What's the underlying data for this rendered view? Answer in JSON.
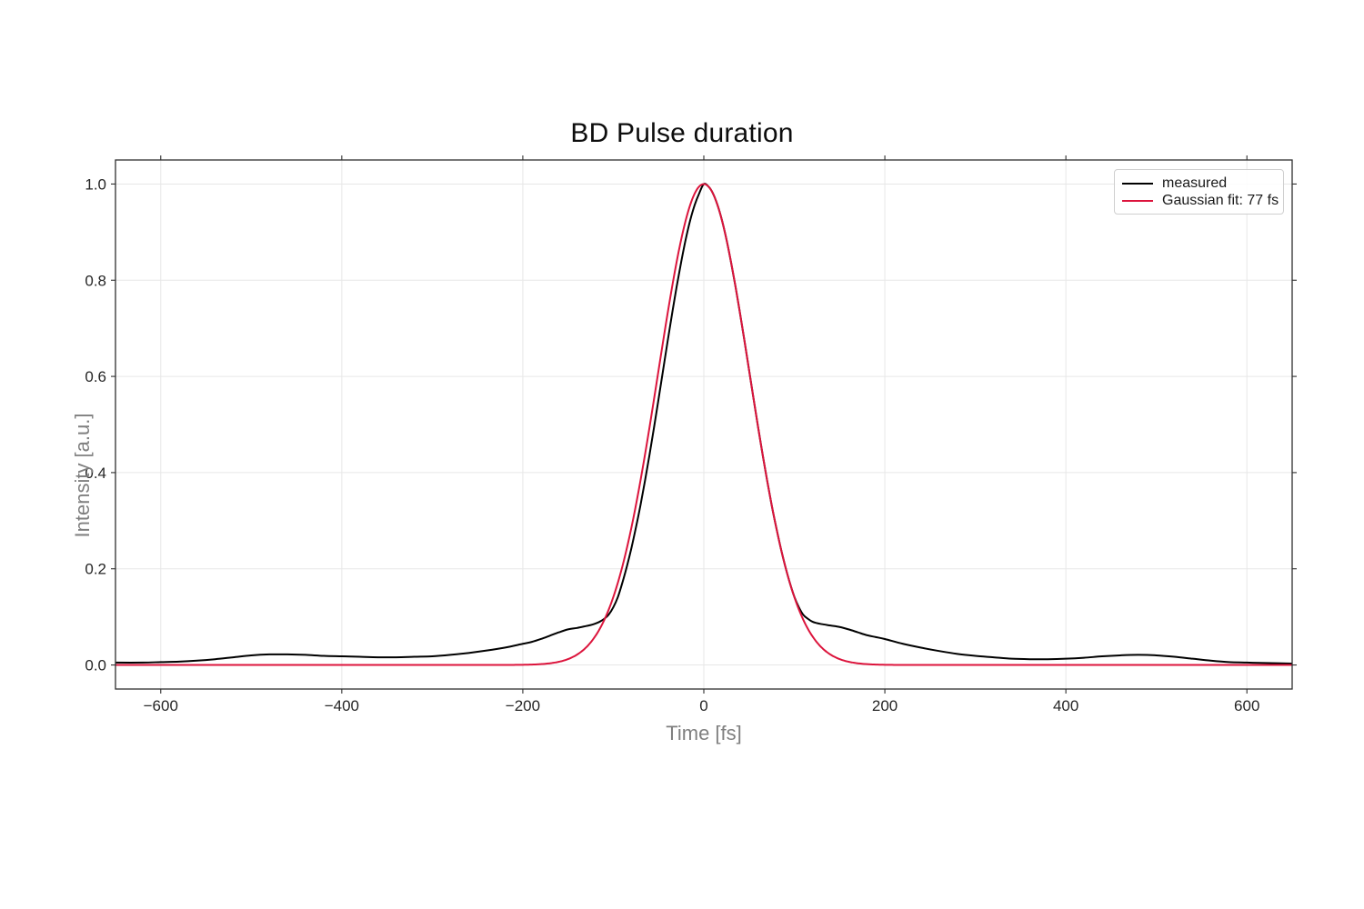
{
  "figure": {
    "background_color": "#ffffff"
  },
  "chart_data": {
    "type": "line",
    "title": "BD Pulse duration",
    "xlabel": "Time [fs]",
    "ylabel": "Intensity [a.u.]",
    "xlim": [
      -650,
      650
    ],
    "ylim": [
      -0.05,
      1.05
    ],
    "grid": true,
    "grid_color": "#e7e7e7",
    "spine_color": "#2e2e2e",
    "tick_label_color": "#262626",
    "axis_label_color": "#7f7f7f",
    "ticks_on_all_sides": true,
    "xticks": {
      "values": [
        -600,
        -400,
        -200,
        0,
        200,
        400,
        600
      ],
      "labels": [
        "−600",
        "−400",
        "−200",
        "0",
        "200",
        "400",
        "600"
      ]
    },
    "yticks": {
      "values": [
        0.0,
        0.2,
        0.4,
        0.6,
        0.8,
        1.0
      ],
      "labels": [
        "0.0",
        "0.2",
        "0.4",
        "0.6",
        "0.8",
        "1.0"
      ]
    },
    "legend": {
      "position": "upper right",
      "entries": [
        {
          "label": "measured",
          "color": "#000000"
        },
        {
          "label": "Gaussian fit: 77 fs",
          "color": "#dc143c"
        }
      ]
    },
    "series": [
      {
        "name": "measured",
        "color": "#000000",
        "linewidth": 2,
        "x": [
          -650,
          -620,
          -600,
          -580,
          -560,
          -540,
          -520,
          -500,
          -480,
          -460,
          -440,
          -420,
          -400,
          -380,
          -360,
          -340,
          -320,
          -300,
          -280,
          -260,
          -240,
          -220,
          -200,
          -190,
          -180,
          -170,
          -160,
          -150,
          -140,
          -130,
          -125,
          -120,
          -115,
          -110,
          -105,
          -100,
          -95,
          -90,
          -85,
          -80,
          -75,
          -70,
          -65,
          -60,
          -55,
          -50,
          -45,
          -40,
          -35,
          -30,
          -25,
          -20,
          -15,
          -10,
          -5,
          0,
          5,
          10,
          15,
          20,
          25,
          30,
          35,
          40,
          45,
          50,
          55,
          60,
          65,
          70,
          75,
          80,
          85,
          90,
          95,
          100,
          105,
          110,
          115,
          120,
          125,
          130,
          140,
          150,
          160,
          170,
          180,
          190,
          200,
          220,
          240,
          260,
          280,
          300,
          320,
          340,
          360,
          380,
          400,
          420,
          440,
          460,
          480,
          500,
          520,
          540,
          560,
          580,
          600,
          620,
          650
        ],
        "y": [
          0.005,
          0.005,
          0.006,
          0.007,
          0.009,
          0.012,
          0.016,
          0.02,
          0.022,
          0.022,
          0.021,
          0.019,
          0.018,
          0.017,
          0.016,
          0.016,
          0.017,
          0.018,
          0.021,
          0.025,
          0.03,
          0.036,
          0.044,
          0.048,
          0.054,
          0.061,
          0.068,
          0.074,
          0.077,
          0.081,
          0.083,
          0.086,
          0.09,
          0.096,
          0.105,
          0.12,
          0.141,
          0.171,
          0.205,
          0.243,
          0.286,
          0.332,
          0.383,
          0.437,
          0.494,
          0.553,
          0.613,
          0.673,
          0.731,
          0.787,
          0.838,
          0.885,
          0.925,
          0.957,
          0.981,
          1.0,
          0.995,
          0.981,
          0.957,
          0.925,
          0.885,
          0.838,
          0.787,
          0.731,
          0.673,
          0.613,
          0.553,
          0.494,
          0.437,
          0.383,
          0.332,
          0.286,
          0.243,
          0.205,
          0.171,
          0.142,
          0.12,
          0.104,
          0.096,
          0.09,
          0.087,
          0.085,
          0.082,
          0.079,
          0.074,
          0.068,
          0.062,
          0.058,
          0.054,
          0.044,
          0.036,
          0.029,
          0.023,
          0.019,
          0.016,
          0.013,
          0.012,
          0.012,
          0.013,
          0.015,
          0.018,
          0.02,
          0.021,
          0.02,
          0.017,
          0.013,
          0.009,
          0.006,
          0.005,
          0.004,
          0.003
        ]
      },
      {
        "name": "Gaussian fit: 77 fs",
        "color": "#dc143c",
        "linewidth": 2,
        "model": "gaussian",
        "amplitude": 1.0,
        "center_fs": 0,
        "fwhm_fs": 119,
        "reported_fit_fs": 77
      }
    ]
  }
}
